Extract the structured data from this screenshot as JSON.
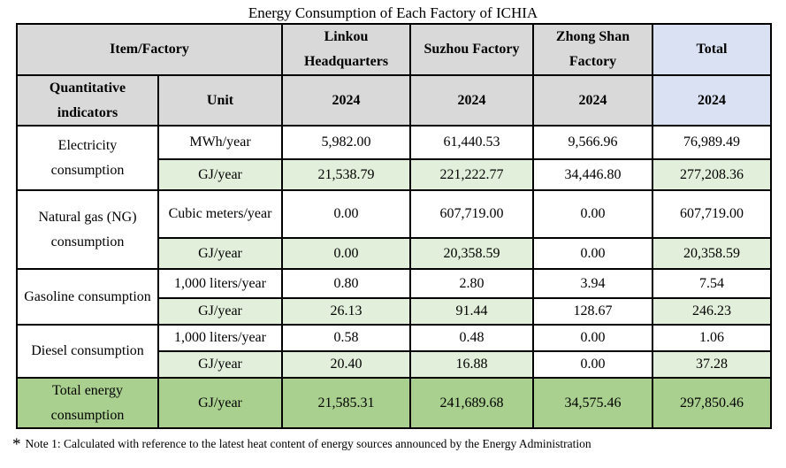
{
  "title": "Energy Consumption of Each Factory of ICHIA",
  "colors": {
    "header_gray": "#d9d9d9",
    "total_column_blue": "#d9e1f2",
    "gj_row_light_green": "#e2efda",
    "total_row_green": "#a9d08e",
    "border": "#000000"
  },
  "header": {
    "item_factory": "Item/Factory",
    "factories": [
      "Linkou Headquarters",
      "Suzhou Factory",
      "Zhong Shan Factory",
      "Total"
    ],
    "quantitative_indicators": "Quantitative indicators",
    "unit_label": "Unit",
    "years": [
      "2024",
      "2024",
      "2024",
      "2024"
    ]
  },
  "rows": [
    {
      "item": "Electricity consumption",
      "subrows": [
        {
          "unit": "MWh/year",
          "values": [
            "5,982.00",
            "61,440.53",
            "9,566.96",
            "76,989.49"
          ]
        },
        {
          "unit": "GJ/year",
          "values": [
            "21,538.79",
            "221,222.77",
            "34,446.80",
            "277,208.36"
          ]
        }
      ]
    },
    {
      "item": "Natural gas (NG) consumption",
      "subrows": [
        {
          "unit": "Cubic meters/year",
          "values": [
            "0.00",
            "607,719.00",
            "0.00",
            "607,719.00"
          ]
        },
        {
          "unit": "GJ/year",
          "values": [
            "0.00",
            "20,358.59",
            "0.00",
            "20,358.59"
          ]
        }
      ]
    },
    {
      "item": "Gasoline consumption",
      "subrows": [
        {
          "unit": "1,000 liters/year",
          "values": [
            "0.80",
            "2.80",
            "3.94",
            "7.54"
          ]
        },
        {
          "unit": "GJ/year",
          "values": [
            "26.13",
            "91.44",
            "128.67",
            "246.23"
          ]
        }
      ]
    },
    {
      "item": "Diesel consumption",
      "subrows": [
        {
          "unit": "1,000 liters/year",
          "values": [
            "0.58",
            "0.48",
            "0.00",
            "1.06"
          ]
        },
        {
          "unit": "GJ/year",
          "values": [
            "20.40",
            "16.88",
            "0.00",
            "37.28"
          ]
        }
      ]
    }
  ],
  "total_row": {
    "item": "Total energy consumption",
    "unit": "GJ/year",
    "values": [
      "21,585.31",
      "241,689.68",
      "34,575.46",
      "297,850.46"
    ]
  },
  "note": {
    "asterisk": "*",
    "text": "Note 1: Calculated with reference to the latest heat content of energy sources announced by the Energy Administration"
  }
}
